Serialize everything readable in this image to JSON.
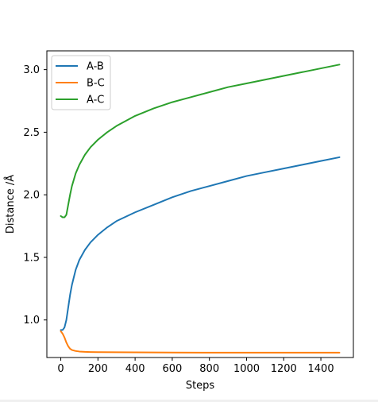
{
  "chart_data": {
    "type": "line",
    "title": "",
    "xlabel": "Steps",
    "ylabel": "Distance /Å",
    "xlim": [
      -75,
      1575
    ],
    "ylim": [
      0.7,
      3.15
    ],
    "xticks": [
      0,
      200,
      400,
      600,
      800,
      1000,
      1200,
      1400
    ],
    "xtick_labels": [
      "0",
      "200",
      "400",
      "600",
      "800",
      "1000",
      "1200",
      "1400"
    ],
    "yticks": [
      1.0,
      1.5,
      2.0,
      2.5,
      3.0
    ],
    "ytick_labels": [
      "1.0",
      "1.5",
      "2.0",
      "2.5",
      "3.0"
    ],
    "grid": false,
    "legend_position": "top-left",
    "series": [
      {
        "name": "A-B",
        "color": "#1f77b4",
        "x": [
          0,
          10,
          20,
          30,
          40,
          50,
          60,
          80,
          100,
          130,
          160,
          200,
          250,
          300,
          400,
          500,
          600,
          700,
          800,
          900,
          1000,
          1100,
          1200,
          1300,
          1400,
          1500
        ],
        "y": [
          0.92,
          0.92,
          0.94,
          1.0,
          1.1,
          1.2,
          1.28,
          1.4,
          1.48,
          1.56,
          1.62,
          1.68,
          1.74,
          1.79,
          1.86,
          1.92,
          1.98,
          2.03,
          2.07,
          2.11,
          2.15,
          2.18,
          2.21,
          2.24,
          2.27,
          2.3
        ]
      },
      {
        "name": "B-C",
        "color": "#ff7f0e",
        "x": [
          0,
          10,
          20,
          30,
          40,
          50,
          60,
          80,
          100,
          130,
          160,
          200,
          300,
          400,
          600,
          800,
          1000,
          1200,
          1400,
          1500
        ],
        "y": [
          0.91,
          0.89,
          0.86,
          0.82,
          0.79,
          0.77,
          0.76,
          0.752,
          0.748,
          0.745,
          0.744,
          0.743,
          0.742,
          0.741,
          0.74,
          0.739,
          0.739,
          0.739,
          0.739,
          0.739
        ]
      },
      {
        "name": "A-C",
        "color": "#2ca02c",
        "x": [
          0,
          10,
          20,
          30,
          40,
          50,
          60,
          80,
          100,
          130,
          160,
          200,
          250,
          300,
          400,
          500,
          600,
          700,
          800,
          900,
          1000,
          1100,
          1200,
          1300,
          1400,
          1500
        ],
        "y": [
          1.83,
          1.82,
          1.82,
          1.84,
          1.92,
          2.0,
          2.07,
          2.17,
          2.24,
          2.32,
          2.38,
          2.44,
          2.5,
          2.55,
          2.63,
          2.69,
          2.74,
          2.78,
          2.82,
          2.86,
          2.89,
          2.92,
          2.95,
          2.98,
          3.01,
          3.04
        ]
      }
    ]
  }
}
